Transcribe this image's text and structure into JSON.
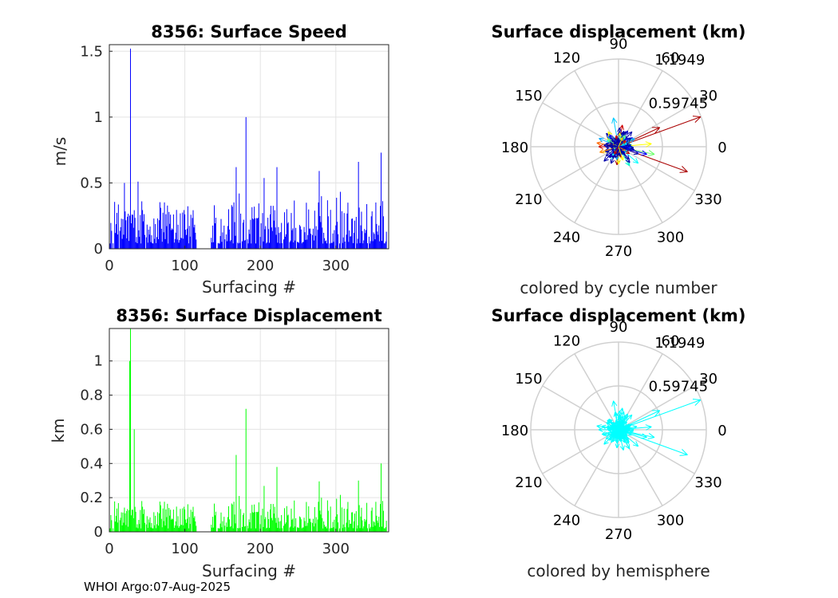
{
  "footer": "WHOI Argo:07-Aug-2025",
  "chart_data": [
    {
      "type": "bar",
      "title": "8356: Surface Speed",
      "xlabel": "Surfacing #",
      "ylabel": "m/s",
      "color": "#0000ff",
      "xlim": [
        0,
        370
      ],
      "ylim": [
        0,
        1.55
      ],
      "xticks": [
        0,
        100,
        200,
        300
      ],
      "xtick_labels": [
        "0",
        "100",
        "200",
        "300"
      ],
      "yticks": [
        0,
        0.5,
        1,
        1.5
      ],
      "ytick_labels": [
        "0",
        "0.5",
        "1",
        "1.5"
      ],
      "grid": true,
      "gaps": [
        [
          115,
          135
        ]
      ],
      "peaks": [
        [
          28,
          1.52
        ],
        [
          181,
          1.0
        ],
        [
          20,
          0.5
        ],
        [
          38,
          0.51
        ],
        [
          168,
          0.62
        ],
        [
          222,
          0.62
        ],
        [
          330,
          0.66
        ],
        [
          360,
          0.73
        ]
      ],
      "baseline_mean": 0.2
    },
    {
      "type": "bar",
      "title": "8356: Surface Displacement",
      "xlabel": "Surfacing #",
      "ylabel": "km",
      "color": "#00ff00",
      "xlim": [
        0,
        370
      ],
      "ylim": [
        0,
        1.19
      ],
      "xticks": [
        0,
        100,
        200,
        300
      ],
      "xtick_labels": [
        "0",
        "100",
        "200",
        "300"
      ],
      "yticks": [
        0,
        0.2,
        0.4,
        0.6,
        0.8,
        1
      ],
      "ytick_labels": [
        "0",
        "0.2",
        "0.4",
        "0.6",
        "0.8",
        "1"
      ],
      "grid": true,
      "gaps": [
        [
          115,
          135
        ]
      ],
      "peaks": [
        [
          28,
          1.19
        ],
        [
          27,
          1.0
        ],
        [
          33,
          0.6
        ],
        [
          181,
          0.72
        ],
        [
          168,
          0.45
        ],
        [
          222,
          0.38
        ],
        [
          330,
          0.3
        ],
        [
          360,
          0.4
        ]
      ],
      "baseline_mean": 0.1
    },
    {
      "type": "polar",
      "title": "Surface displacement (km)",
      "caption": "colored by cycle number",
      "r_max": 1.1949,
      "r_ticks": [
        0.59745,
        1.1949
      ],
      "r_tick_labels": [
        "0.59745",
        "1.1949"
      ],
      "angle_ticks": [
        0,
        30,
        60,
        90,
        120,
        150,
        180,
        210,
        240,
        270,
        300,
        330
      ],
      "angle_tick_labels": [
        "0",
        "30",
        "60",
        "90",
        "120",
        "150",
        "180",
        "210",
        "240",
        "270",
        "300",
        "330"
      ],
      "vectors": [
        {
          "angle": 20,
          "r": 1.19,
          "color": "#aa0000"
        },
        {
          "angle": -20,
          "r": 1.0,
          "color": "#aa0000"
        },
        {
          "angle": 25,
          "r": 0.62,
          "color": "#aa0000"
        },
        {
          "angle": -12,
          "r": 0.5,
          "color": "#66ff66"
        },
        {
          "angle": 5,
          "r": 0.45,
          "color": "#ffff00"
        },
        {
          "angle": 100,
          "r": 0.4,
          "color": "#00ccff"
        },
        {
          "angle": 180,
          "r": 0.27,
          "color": "#cc0000"
        },
        {
          "angle": 225,
          "r": 0.28,
          "color": "#0000aa"
        },
        {
          "angle": 300,
          "r": 0.3,
          "color": "#00ffcc"
        },
        {
          "angle": 265,
          "r": 0.25,
          "color": "#aa0000"
        },
        {
          "angle": 140,
          "r": 0.2,
          "color": "#ffaa00"
        },
        {
          "angle": 60,
          "r": 0.25,
          "color": "#0000cc"
        },
        {
          "angle": 200,
          "r": 0.22,
          "color": "#ffff66"
        },
        {
          "angle": 320,
          "r": 0.35,
          "color": "#00ffff"
        },
        {
          "angle": 80,
          "r": 0.3,
          "color": "#cc0000"
        },
        {
          "angle": 170,
          "r": 0.3,
          "color": "#ff6600"
        },
        {
          "angle": 240,
          "r": 0.2,
          "color": "#66ffff"
        },
        {
          "angle": 345,
          "r": 0.4,
          "color": "#0000ff"
        }
      ]
    },
    {
      "type": "polar",
      "title": "Surface displacement (km)",
      "caption": "colored by hemisphere",
      "r_max": 1.1949,
      "r_ticks": [
        0.59745,
        1.1949
      ],
      "r_tick_labels": [
        "0.59745",
        "1.1949"
      ],
      "angle_ticks": [
        0,
        30,
        60,
        90,
        120,
        150,
        180,
        210,
        240,
        270,
        300,
        330
      ],
      "angle_tick_labels": [
        "0",
        "30",
        "60",
        "90",
        "120",
        "150",
        "180",
        "210",
        "240",
        "270",
        "300",
        "330"
      ],
      "vectors": [
        {
          "angle": 20,
          "r": 1.19,
          "color": "#00ffff"
        },
        {
          "angle": -20,
          "r": 1.0,
          "color": "#00ffff"
        },
        {
          "angle": 25,
          "r": 0.62,
          "color": "#00ffff"
        },
        {
          "angle": -12,
          "r": 0.5,
          "color": "#00ffff"
        },
        {
          "angle": 5,
          "r": 0.45,
          "color": "#00ffff"
        },
        {
          "angle": 100,
          "r": 0.4,
          "color": "#00ffff"
        },
        {
          "angle": 180,
          "r": 0.27,
          "color": "#00ffff"
        },
        {
          "angle": 225,
          "r": 0.28,
          "color": "#00ffff"
        },
        {
          "angle": 300,
          "r": 0.3,
          "color": "#00ffff"
        },
        {
          "angle": 265,
          "r": 0.25,
          "color": "#00ffff"
        },
        {
          "angle": 140,
          "r": 0.2,
          "color": "#00ffff"
        },
        {
          "angle": 60,
          "r": 0.25,
          "color": "#00ffff"
        },
        {
          "angle": 200,
          "r": 0.22,
          "color": "#00ffff"
        },
        {
          "angle": 320,
          "r": 0.35,
          "color": "#00ffff"
        },
        {
          "angle": 80,
          "r": 0.3,
          "color": "#00ffff"
        },
        {
          "angle": 170,
          "r": 0.3,
          "color": "#00ffff"
        },
        {
          "angle": 240,
          "r": 0.2,
          "color": "#00ffff"
        },
        {
          "angle": 345,
          "r": 0.4,
          "color": "#00ffff"
        }
      ]
    }
  ]
}
